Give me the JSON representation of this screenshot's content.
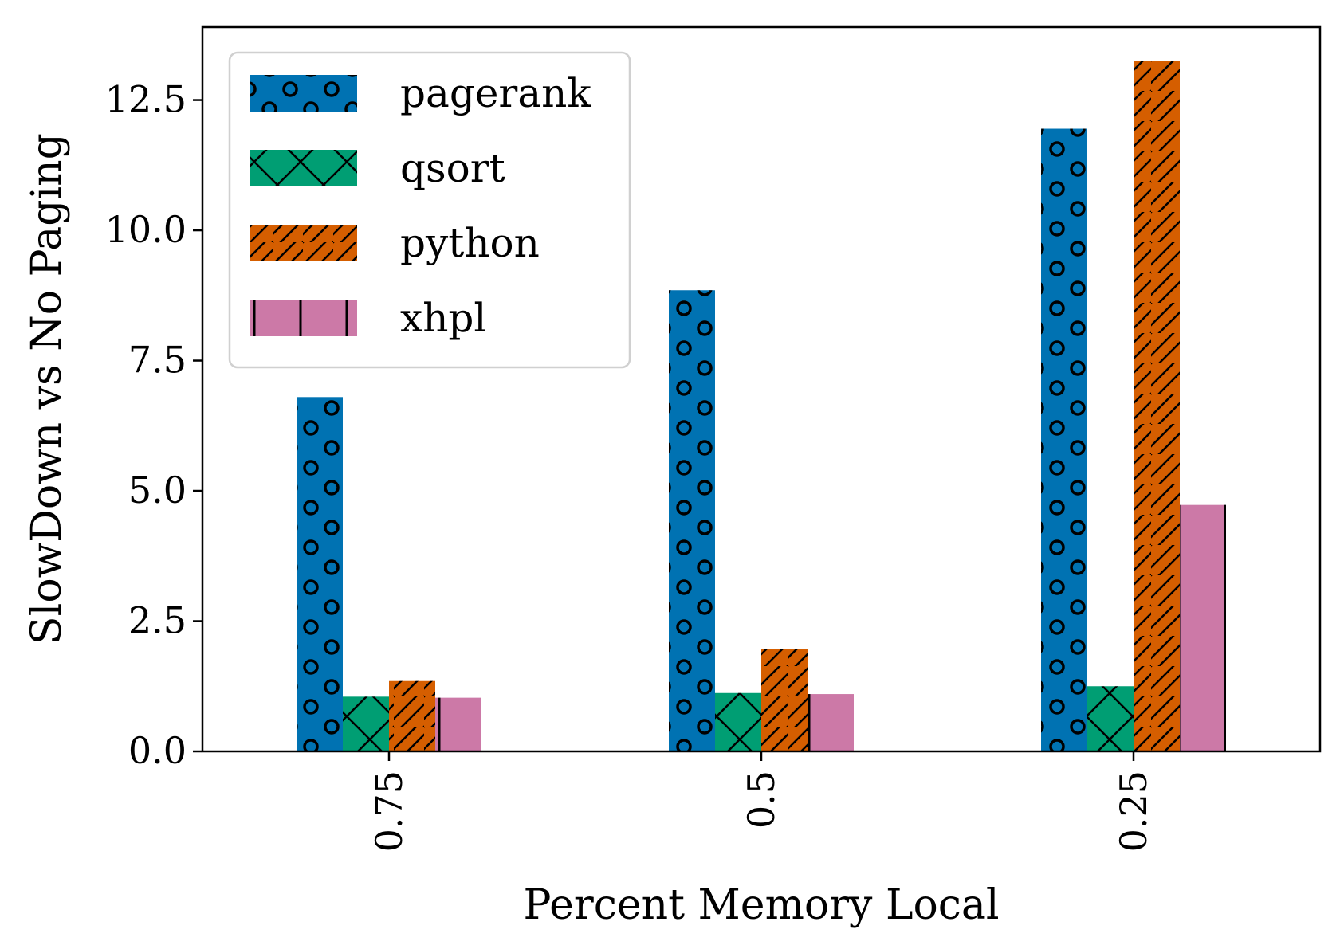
{
  "chart_data": {
    "type": "bar",
    "title": "",
    "xlabel": "Percent Memory Local",
    "ylabel": "SlowDown vs No Paging",
    "categories": [
      "0.75",
      "0.5",
      "0.25"
    ],
    "ylim": [
      0,
      13.9
    ],
    "yticks": [
      "0.0",
      "2.5",
      "5.0",
      "7.5",
      "10.0",
      "12.5"
    ],
    "ytick_values": [
      0,
      2.5,
      5,
      7.5,
      10,
      12.5
    ],
    "grid": false,
    "legend_position": "top-left",
    "series": [
      {
        "name": "pagerank",
        "values": [
          6.8,
          8.85,
          11.95
        ],
        "color": "#0072B2",
        "hatch": "circles"
      },
      {
        "name": "qsort",
        "values": [
          1.05,
          1.12,
          1.25
        ],
        "color": "#009E73",
        "hatch": "cross"
      },
      {
        "name": "python",
        "values": [
          1.35,
          1.97,
          13.25
        ],
        "color": "#D55E00",
        "hatch": "diagonal"
      },
      {
        "name": "xhpl",
        "values": [
          1.03,
          1.1,
          4.73
        ],
        "color": "#CC79A7",
        "hatch": "vertical"
      }
    ]
  }
}
